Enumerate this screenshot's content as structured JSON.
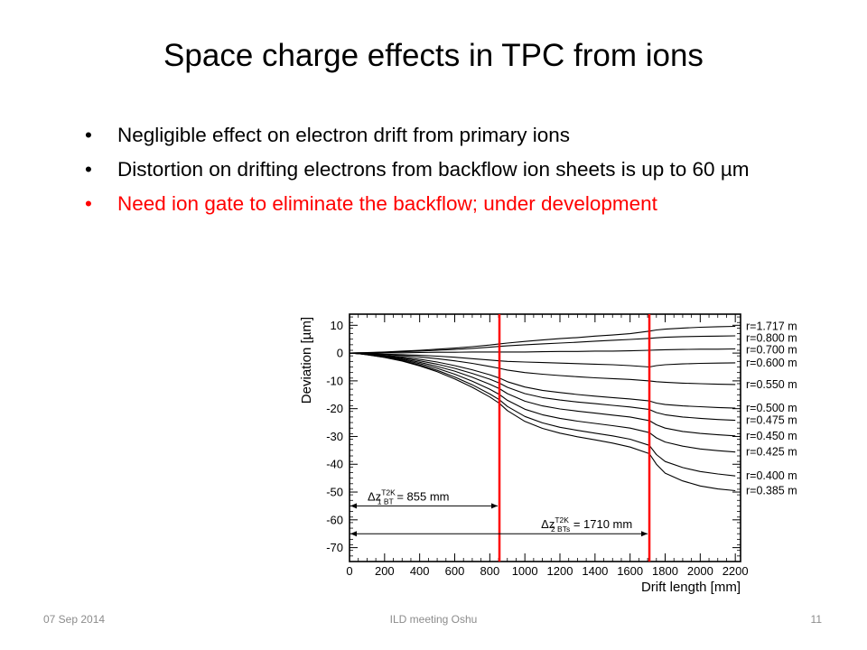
{
  "slide": {
    "title": "Space charge effects in TPC from ions",
    "bullets": [
      {
        "text": "Negligible effect on electron drift from primary ions",
        "color": "#000000"
      },
      {
        "text": "Distortion on drifting electrons from backflow ion sheets is up to 60 µm",
        "color": "#000000"
      },
      {
        "text": "Need ion gate to eliminate the backflow; under development",
        "color": "#ff0000"
      }
    ],
    "bullet_glyph": "•"
  },
  "footer": {
    "date": "07 Sep 2014",
    "center": "ILD meeting Oshu",
    "page": "11"
  },
  "chart_data": {
    "type": "line",
    "xlabel": "Drift length [mm]",
    "ylabel": "Deviation [µm]",
    "xlim": [
      0,
      2230
    ],
    "ylim": [
      -75,
      14
    ],
    "xticks": [
      0,
      200,
      400,
      600,
      800,
      1000,
      1200,
      1400,
      1600,
      1800,
      2000,
      2200
    ],
    "yticks": [
      10,
      0,
      -10,
      -20,
      -30,
      -40,
      -50,
      -60,
      -70
    ],
    "vlines": [
      {
        "x": 855,
        "color": "#ff0000"
      },
      {
        "x": 1710,
        "color": "#ff0000"
      }
    ],
    "annotations": [
      {
        "main": "Δz",
        "sup": "T2K",
        "sub": "1 BT",
        "value": "= 855 mm",
        "from": 0,
        "to": 855,
        "y": -55
      },
      {
        "main": "Δz",
        "sup": "T2K",
        "sub": "2 BTs",
        "value": "= 1710 mm",
        "from": 0,
        "to": 1710,
        "y": -65
      }
    ],
    "x": [
      0,
      50,
      100,
      200,
      300,
      400,
      500,
      600,
      700,
      800,
      855,
      900,
      1000,
      1100,
      1200,
      1300,
      1400,
      1500,
      1600,
      1710,
      1750,
      1800,
      1900,
      2000,
      2100,
      2200
    ],
    "series": [
      {
        "name": "r=1.717 m",
        "values": [
          0,
          0.1,
          0.2,
          0.4,
          0.7,
          1.0,
          1.4,
          1.8,
          2.3,
          2.9,
          3.3,
          3.6,
          4.2,
          4.7,
          5.2,
          5.6,
          6.1,
          6.5,
          7.0,
          7.9,
          8.3,
          8.6,
          9.0,
          9.3,
          9.5,
          9.6
        ]
      },
      {
        "name": "r=0.800 m",
        "values": [
          0,
          0.1,
          0.1,
          0.3,
          0.5,
          0.7,
          1.0,
          1.3,
          1.7,
          2.1,
          2.4,
          2.6,
          3.0,
          3.3,
          3.6,
          3.9,
          4.3,
          4.6,
          4.9,
          5.3,
          5.5,
          5.7,
          5.9,
          6.0,
          6.1,
          6.2
        ]
      },
      {
        "name": "r=0.700 m",
        "values": [
          0,
          0,
          0,
          0.1,
          0.1,
          0.2,
          0.3,
          0.3,
          0.4,
          0.4,
          0.4,
          0.4,
          0.4,
          0.5,
          0.6,
          0.6,
          0.7,
          0.7,
          0.8,
          1.0,
          1.1,
          1.2,
          1.3,
          1.4,
          1.4,
          1.5
        ]
      },
      {
        "name": "r=0.600 m",
        "values": [
          0,
          -0.1,
          -0.2,
          -0.4,
          -0.6,
          -0.8,
          -1.1,
          -1.5,
          -2.0,
          -2.5,
          -2.8,
          -3.0,
          -3.2,
          -3.4,
          -3.6,
          -3.8,
          -4.0,
          -4.2,
          -4.5,
          -5.0,
          -4.5,
          -4.2,
          -3.9,
          -3.7,
          -3.6,
          -3.5
        ]
      },
      {
        "name": "r=0.550 m",
        "values": [
          0,
          -0.1,
          -0.2,
          -0.5,
          -0.9,
          -1.4,
          -2.0,
          -2.8,
          -3.7,
          -4.8,
          -5.5,
          -6.1,
          -7.0,
          -7.6,
          -8.1,
          -8.5,
          -8.9,
          -9.2,
          -9.5,
          -10.0,
          -10.3,
          -10.5,
          -10.8,
          -11.0,
          -11.2,
          -11.3
        ]
      },
      {
        "name": "r=0.500 m",
        "values": [
          0,
          -0.1,
          -0.3,
          -0.8,
          -1.4,
          -2.2,
          -3.2,
          -4.5,
          -6.0,
          -7.8,
          -9.0,
          -10.3,
          -12.2,
          -13.4,
          -14.2,
          -14.9,
          -15.5,
          -16.0,
          -16.5,
          -17.2,
          -18.0,
          -18.5,
          -19.0,
          -19.3,
          -19.6,
          -19.8
        ]
      },
      {
        "name": "r=0.475 m",
        "values": [
          0,
          -0.2,
          -0.4,
          -1.0,
          -1.8,
          -2.8,
          -4.0,
          -5.5,
          -7.3,
          -9.4,
          -10.8,
          -12.3,
          -14.6,
          -16.0,
          -16.9,
          -17.6,
          -18.2,
          -18.8,
          -19.4,
          -20.3,
          -21.4,
          -22.2,
          -23.0,
          -23.5,
          -23.9,
          -24.2
        ]
      },
      {
        "name": "r=0.450 m",
        "values": [
          0,
          -0.2,
          -0.5,
          -1.2,
          -2.1,
          -3.3,
          -4.8,
          -6.5,
          -8.7,
          -11.2,
          -12.8,
          -14.6,
          -17.3,
          -19.0,
          -20.1,
          -20.9,
          -21.6,
          -22.3,
          -23.0,
          -24.3,
          -25.8,
          -27.0,
          -28.2,
          -28.9,
          -29.4,
          -29.8
        ]
      },
      {
        "name": "r=0.425 m",
        "values": [
          0,
          -0.2,
          -0.5,
          -1.3,
          -2.4,
          -3.8,
          -5.5,
          -7.6,
          -10.1,
          -13.0,
          -14.9,
          -17.0,
          -20.2,
          -22.2,
          -23.5,
          -24.5,
          -25.3,
          -26.1,
          -27.0,
          -28.6,
          -30.5,
          -32.0,
          -33.5,
          -34.5,
          -35.1,
          -35.6
        ]
      },
      {
        "name": "r=0.400 m",
        "values": [
          0,
          -0.2,
          -0.6,
          -1.5,
          -2.7,
          -4.3,
          -6.2,
          -8.6,
          -11.4,
          -14.7,
          -16.8,
          -19.2,
          -22.8,
          -25.1,
          -26.7,
          -27.8,
          -28.8,
          -29.8,
          -31.0,
          -33.2,
          -36.5,
          -39.0,
          -41.2,
          -42.6,
          -43.5,
          -44.2
        ]
      },
      {
        "name": "r=0.385 m",
        "values": [
          0,
          -0.2,
          -0.6,
          -1.6,
          -2.9,
          -4.6,
          -6.7,
          -9.3,
          -12.3,
          -15.8,
          -18.1,
          -20.7,
          -24.6,
          -27.1,
          -28.8,
          -30.1,
          -31.2,
          -32.4,
          -33.8,
          -36.2,
          -40.0,
          -43.2,
          -46.0,
          -47.8,
          -48.9,
          -49.5
        ]
      }
    ],
    "grid": false,
    "legend": "right-of-lines"
  }
}
